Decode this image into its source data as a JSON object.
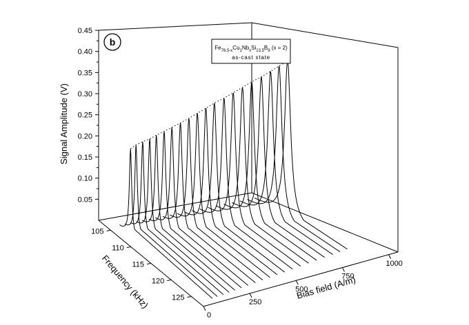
{
  "chart_data": {
    "type": "line",
    "panel_label": "b",
    "annotation": {
      "line1_base": "Fe",
      "line1_parts": [
        {
          "t": "Fe",
          "sub": "76.5-x"
        },
        {
          "t": "Cu",
          "sub": "1"
        },
        {
          "t": "Nb",
          "sub": "x"
        },
        {
          "t": "Si",
          "sub": "13.5"
        },
        {
          "t": "B",
          "sub": "9"
        },
        {
          "t": " (x = 2)",
          "sub": ""
        }
      ],
      "line2": "as-cast state"
    },
    "zlabel": "Signal Amplitude (V)",
    "ylabel": "Frequency (kHz)",
    "xlabel": "Bias field (A/m)",
    "z_ticks": [
      "0.05",
      "0.10",
      "0.15",
      "0.20",
      "0.25",
      "0.30",
      "0.35",
      "0.40",
      "0.45"
    ],
    "y_ticks": [
      "105",
      "110",
      "115",
      "120",
      "125"
    ],
    "x_ticks": [
      "0",
      "250",
      "500",
      "750",
      "1000"
    ],
    "zlim": [
      0.0,
      0.45
    ],
    "ylim": [
      102,
      128
    ],
    "xlim": [
      0,
      1050
    ],
    "series": [
      {
        "bias": 75,
        "resonance_freq": 107.2,
        "peak": 0.205
      },
      {
        "bias": 110,
        "resonance_freq": 107.3,
        "peak": 0.212
      },
      {
        "bias": 150,
        "resonance_freq": 107.5,
        "peak": 0.218
      },
      {
        "bias": 190,
        "resonance_freq": 107.8,
        "peak": 0.224
      },
      {
        "bias": 230,
        "resonance_freq": 108.0,
        "peak": 0.231
      },
      {
        "bias": 275,
        "resonance_freq": 108.3,
        "peak": 0.239
      },
      {
        "bias": 320,
        "resonance_freq": 108.6,
        "peak": 0.247
      },
      {
        "bias": 370,
        "resonance_freq": 108.9,
        "peak": 0.256
      },
      {
        "bias": 420,
        "resonance_freq": 109.2,
        "peak": 0.265
      },
      {
        "bias": 470,
        "resonance_freq": 109.5,
        "peak": 0.275
      },
      {
        "bias": 520,
        "resonance_freq": 109.8,
        "peak": 0.285
      },
      {
        "bias": 570,
        "resonance_freq": 110.1,
        "peak": 0.295
      },
      {
        "bias": 625,
        "resonance_freq": 110.5,
        "peak": 0.305
      },
      {
        "bias": 680,
        "resonance_freq": 110.8,
        "peak": 0.315
      },
      {
        "bias": 735,
        "resonance_freq": 111.1,
        "peak": 0.325
      },
      {
        "bias": 790,
        "resonance_freq": 111.4,
        "peak": 0.335
      },
      {
        "bias": 845,
        "resonance_freq": 111.8,
        "peak": 0.345
      },
      {
        "bias": 900,
        "resonance_freq": 112.1,
        "peak": 0.355
      },
      {
        "bias": 950,
        "resonance_freq": 112.4,
        "peak": 0.365
      },
      {
        "bias": 1000,
        "resonance_freq": 112.7,
        "peak": 0.375
      }
    ],
    "grid": false,
    "legend": "none"
  }
}
